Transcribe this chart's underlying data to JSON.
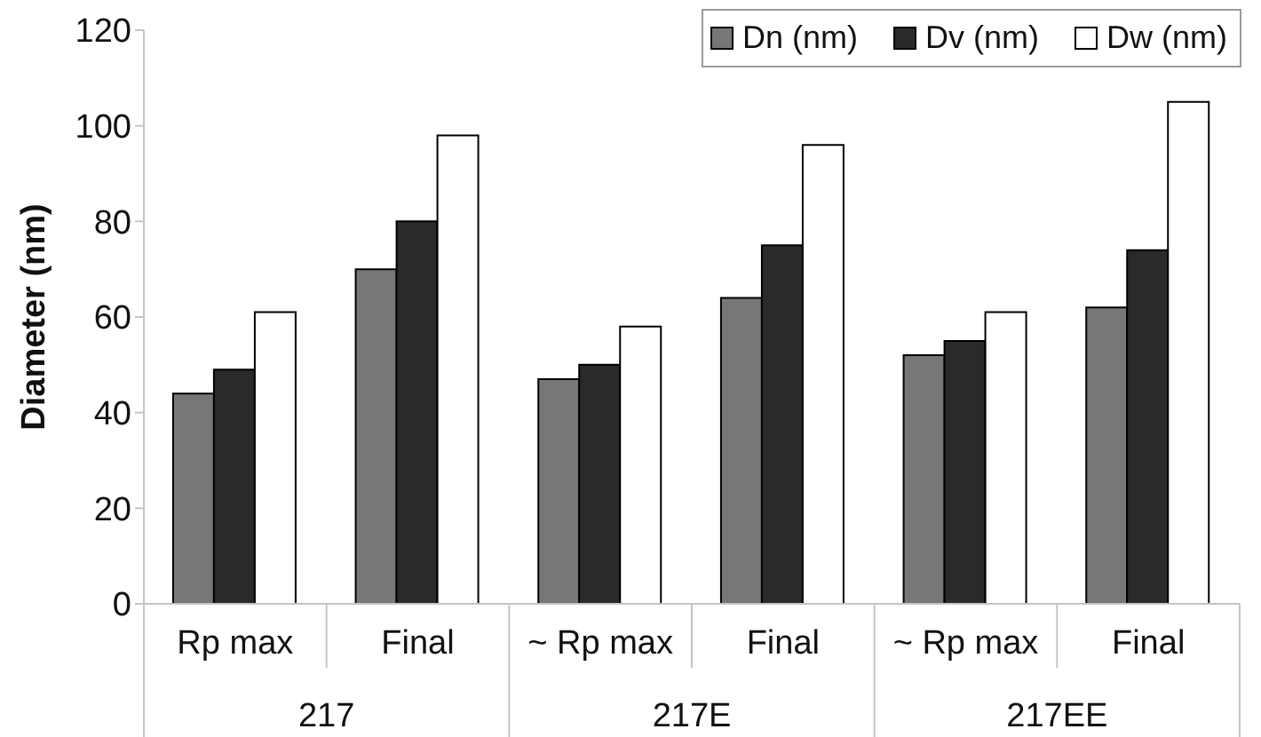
{
  "chart_data": {
    "type": "bar",
    "ylabel": "Diameter (nm)",
    "categories": [
      "Rp max",
      "Final",
      "~ Rp max",
      "Final",
      "~ Rp max",
      "Final"
    ],
    "annotations": [
      "217",
      "217E",
      "217EE"
    ],
    "series": [
      {
        "name": "Dn (nm)",
        "color": "#777777",
        "values": [
          44,
          70,
          47,
          64,
          52,
          62
        ]
      },
      {
        "name": "Dv (nm)",
        "color": "#2a2a2a",
        "values": [
          49,
          80,
          50,
          75,
          55,
          74
        ]
      },
      {
        "name": "Dw (nm)",
        "color": "#ffffff",
        "values": [
          61,
          98,
          58,
          96,
          61,
          105
        ]
      }
    ],
    "ylim": [
      0,
      120
    ],
    "yticks": [
      0,
      20,
      40,
      60,
      80,
      100,
      120
    ],
    "legend": "top right"
  }
}
